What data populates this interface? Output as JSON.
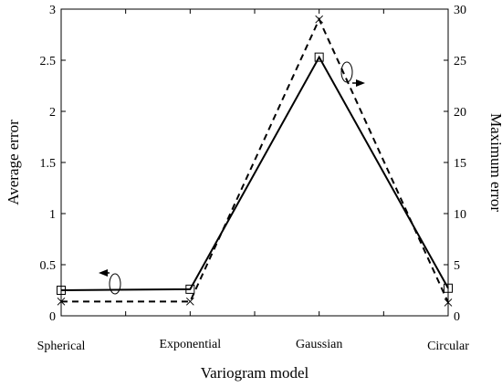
{
  "chart_data": {
    "type": "line",
    "categories": [
      "Spherical",
      "Exponential",
      "Gaussian",
      "Circular"
    ],
    "xlabel": "Variogram model",
    "ylabel": "Average error",
    "y2label": "Maximum error",
    "ylim": [
      0,
      3
    ],
    "y2lim": [
      0,
      30
    ],
    "yticks": [
      "0",
      "0.5",
      "1",
      "1.5",
      "2",
      "2.5",
      "3"
    ],
    "y2ticks": [
      "0",
      "5",
      "10",
      "15",
      "20",
      "25",
      "30"
    ],
    "series": [
      {
        "axis": "left",
        "line_style": "solid",
        "marker": "square",
        "values": [
          0.25,
          0.26,
          2.53,
          0.27
        ]
      },
      {
        "axis": "right",
        "line_style": "dashed",
        "marker": "x",
        "values": [
          1.4,
          1.4,
          29.0,
          1.3
        ]
      }
    ],
    "annotations": [
      {
        "type": "arrow-left",
        "points_to": "left axis",
        "series": 0
      },
      {
        "type": "arrow-right",
        "points_to": "right axis",
        "series": 1
      }
    ],
    "grid": false,
    "legend": "none"
  }
}
